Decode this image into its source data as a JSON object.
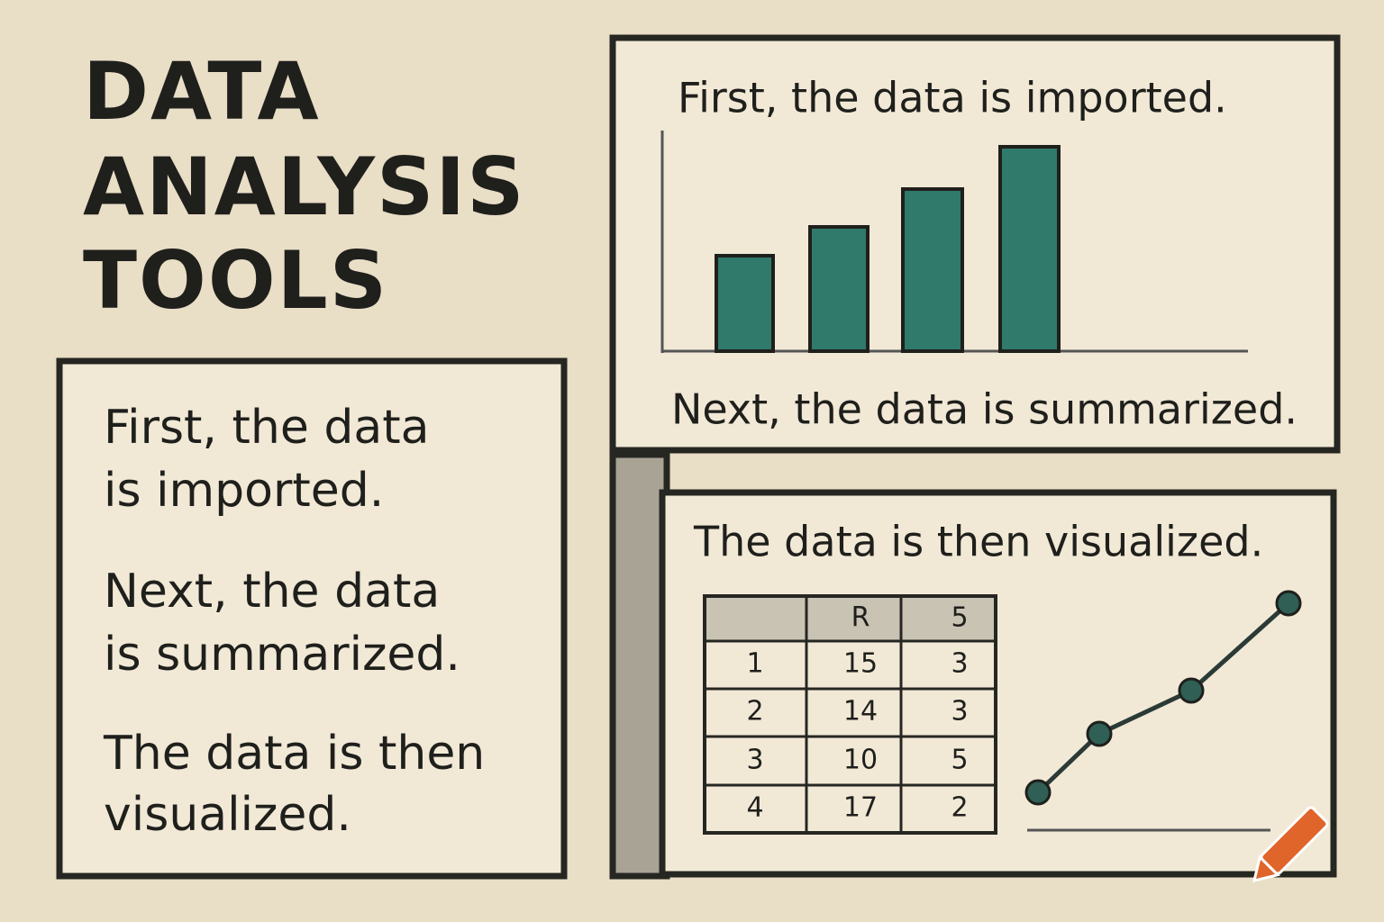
{
  "title": {
    "lines": [
      "DATA",
      "ANALYSIS",
      "TOOLS"
    ]
  },
  "steps_panel": {
    "lines": [
      "First, the data",
      "is imported.",
      "Next, the data",
      "is summarized.",
      "The data is then",
      "visualized."
    ]
  },
  "summary_panel": {
    "top_caption": "First, the data is imported.",
    "bottom_caption": "Next, the data is summarized."
  },
  "visual_panel": {
    "caption": "The data is then visualized.",
    "table": {
      "headers": [
        "R",
        "5"
      ],
      "rows": [
        [
          1,
          15,
          3
        ],
        [
          2,
          14,
          3
        ],
        [
          3,
          10,
          5
        ],
        [
          4,
          17,
          2
        ]
      ]
    }
  }
}
